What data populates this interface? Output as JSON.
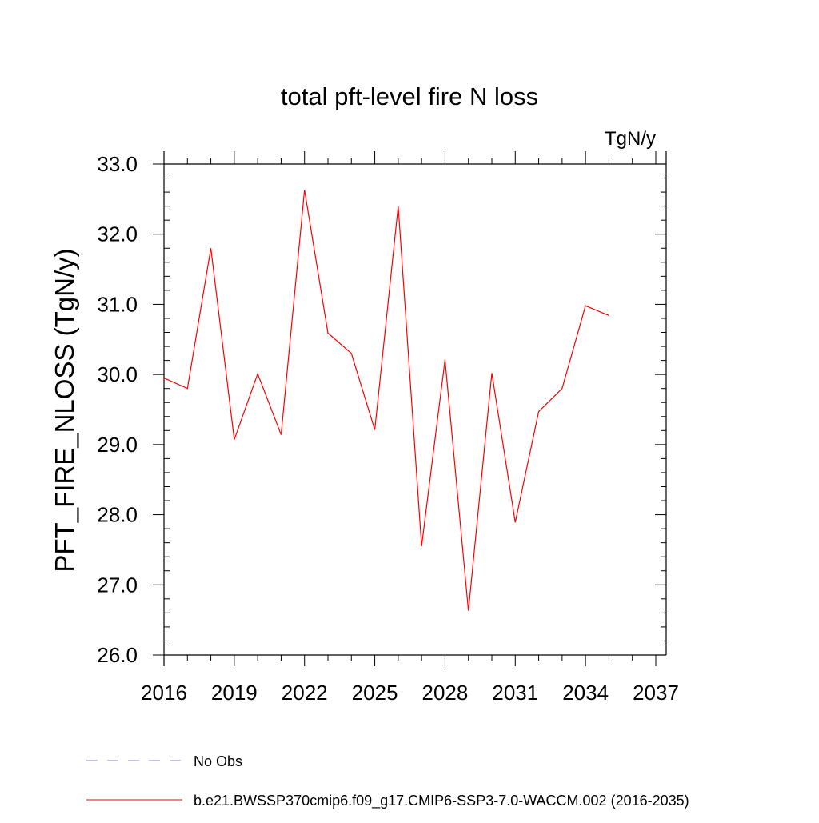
{
  "chart_data": {
    "type": "line",
    "title": "total pft-level fire N loss",
    "units_label": "TgN/y",
    "ylabel": "PFT_FIRE_NLOSS  (TgN/y)",
    "xlabel": "",
    "xlim": [
      2016,
      2037
    ],
    "ylim": [
      26.0,
      33.0
    ],
    "x_ticks": [
      2016,
      2019,
      2022,
      2025,
      2028,
      2031,
      2034,
      2037
    ],
    "x_tick_labels": [
      "2016",
      "2019",
      "2022",
      "2025",
      "2028",
      "2031",
      "2034",
      "2037"
    ],
    "y_ticks": [
      26,
      27,
      28,
      29,
      30,
      31,
      32,
      33
    ],
    "y_tick_labels": [
      "26.0",
      "27.0",
      "28.0",
      "29.0",
      "30.0",
      "31.0",
      "32.0",
      "33.0"
    ],
    "grid": false,
    "legend_position": "bottom-left",
    "series": [
      {
        "name": "b.e21.BWSSP370cmip6.f09_g17.CMIP6-SSP3-7.0-WACCM.002 (2016-2035)",
        "color": "#ff0000",
        "style": "solid",
        "x": [
          2016,
          2017,
          2018,
          2019,
          2020,
          2021,
          2022,
          2023,
          2024,
          2025,
          2026,
          2027,
          2028,
          2029,
          2030,
          2031,
          2032,
          2033,
          2034,
          2035
        ],
        "values": [
          29.95,
          29.8,
          31.8,
          29.07,
          30.01,
          29.14,
          32.63,
          30.59,
          30.3,
          29.21,
          32.4,
          27.55,
          30.21,
          26.63,
          30.02,
          27.89,
          29.47,
          29.8,
          30.98,
          30.84
        ]
      }
    ],
    "legend": [
      {
        "label": "No Obs",
        "color": "#8a7fd6",
        "style": "dashed"
      },
      {
        "label": "b.e21.BWSSP370cmip6.f09_g17.CMIP6-SSP3-7.0-WACCM.002 (2016-2035)",
        "color": "#ff0000",
        "style": "solid"
      }
    ]
  }
}
